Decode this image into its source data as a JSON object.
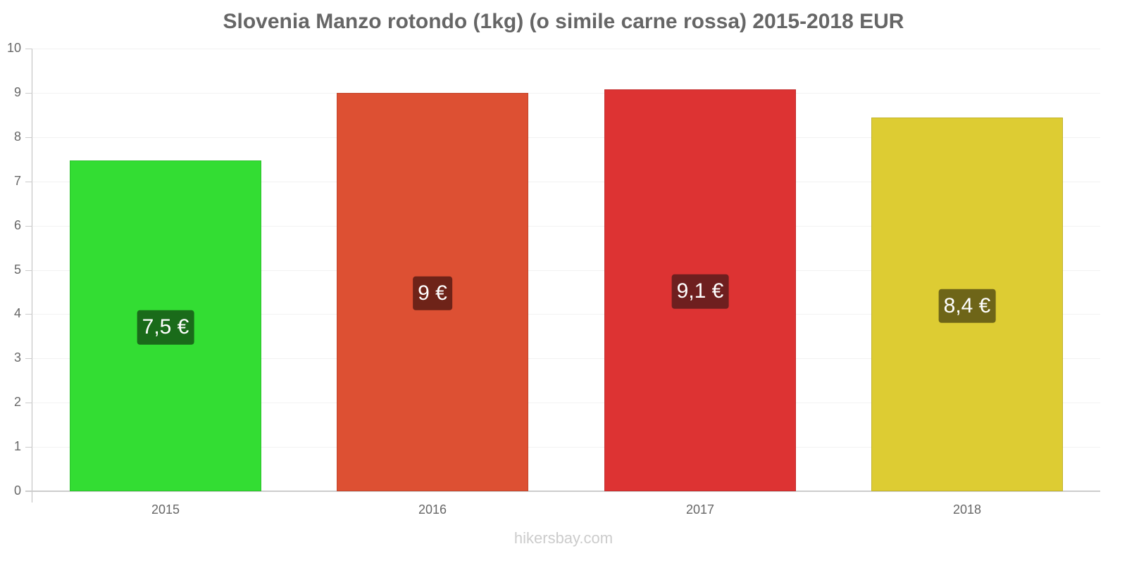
{
  "chart_data": {
    "type": "bar",
    "title": "Slovenia Manzo rotondo (1kg) (o simile carne rossa) 2015-2018 EUR",
    "xlabel": "",
    "ylabel": "",
    "categories": [
      "2015",
      "2016",
      "2017",
      "2018"
    ],
    "values": [
      7.47,
      9.0,
      9.08,
      8.44
    ],
    "value_labels": [
      "7,5 €",
      "9 €",
      "9,1 €",
      "8,4 €"
    ],
    "bar_colors": [
      "#33dd33",
      "#dd5033",
      "#dd3333",
      "#ddcc33"
    ],
    "label_bg_colors": [
      "#1a6b1a",
      "#6e2318",
      "#6e1f1f",
      "#6e6518"
    ],
    "ylim": [
      0,
      10
    ],
    "yticks": [
      "0",
      "1",
      "2",
      "3",
      "4",
      "5",
      "6",
      "7",
      "8",
      "9",
      "10"
    ],
    "grid": true,
    "legend": "none"
  },
  "watermark": "hikersbay.com"
}
